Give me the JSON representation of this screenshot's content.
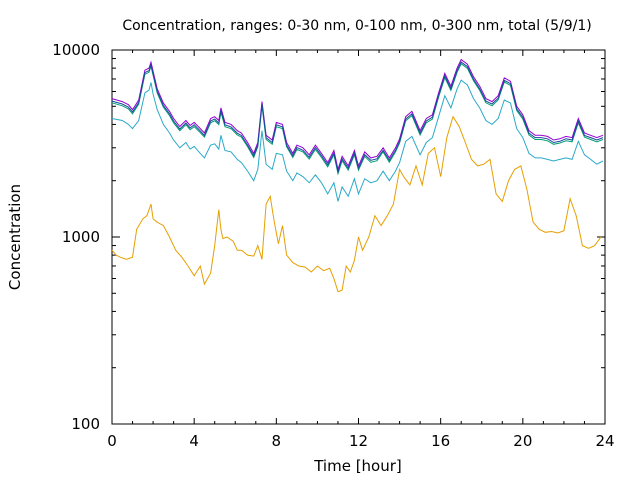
{
  "chart_data": {
    "type": "line",
    "title": "Concentration, ranges: 0-30 nm, 0-100 nm, 0-300 nm, total (5/9/1)",
    "xlabel": "Time [hour]",
    "ylabel": "Concentration",
    "xlim": [
      0,
      24
    ],
    "ylim": [
      100,
      10000
    ],
    "yscale": "log",
    "grid": false,
    "xticks": [
      0,
      4,
      8,
      12,
      16,
      20,
      24
    ],
    "yticks": [
      100,
      1000,
      10000
    ],
    "series": [
      {
        "color": "#9400d3",
        "x": [
          0,
          0.5,
          0.8,
          1,
          1.3,
          1.6,
          1.8,
          1.9,
          2,
          2.2,
          2.5,
          2.8,
          3,
          3.3,
          3.6,
          3.8,
          4,
          4.3,
          4.5,
          4.8,
          5,
          5.2,
          5.3,
          5.5,
          5.8,
          6.1,
          6.3,
          6.6,
          6.9,
          7.1,
          7.3,
          7.5,
          7.8,
          8,
          8.3,
          8.5,
          8.8,
          9,
          9.3,
          9.6,
          9.9,
          10.2,
          10.5,
          10.8,
          11,
          11.2,
          11.5,
          11.8,
          12,
          12.3,
          12.6,
          12.9,
          13.2,
          13.5,
          13.8,
          14,
          14.3,
          14.6,
          15,
          15.3,
          15.6,
          15.9,
          16.2,
          16.5,
          16.8,
          17,
          17.3,
          17.6,
          17.9,
          18.2,
          18.5,
          18.8,
          19.1,
          19.4,
          19.7,
          20,
          20.3,
          20.6,
          20.9,
          21.2,
          21.5,
          21.8,
          22.1,
          22.4,
          22.7,
          23,
          23.3,
          23.6,
          23.9
        ],
        "values": [
          5500,
          5300,
          5100,
          4800,
          5400,
          7800,
          8000,
          8600,
          7700,
          6200,
          5200,
          4700,
          4300,
          3900,
          4200,
          3950,
          4100,
          3800,
          3600,
          4300,
          4400,
          4200,
          4900,
          4100,
          4000,
          3700,
          3600,
          3200,
          2800,
          3200,
          5300,
          3500,
          3300,
          4100,
          4000,
          3200,
          2800,
          3100,
          3000,
          2750,
          3100,
          2800,
          2500,
          2900,
          2300,
          2700,
          2400,
          2900,
          2400,
          2850,
          2650,
          2700,
          3000,
          2650,
          3000,
          3350,
          4400,
          4700,
          3700,
          4300,
          4500,
          5900,
          7500,
          6400,
          8000,
          8900,
          8400,
          7200,
          6400,
          5500,
          5300,
          5700,
          7100,
          6800,
          5000,
          4500,
          3700,
          3500,
          3500,
          3450,
          3300,
          3350,
          3450,
          3400,
          4300,
          3600,
          3500,
          3400,
          3500
        ]
      },
      {
        "color": "#009e73",
        "x": [
          0,
          0.5,
          0.8,
          1,
          1.3,
          1.6,
          1.8,
          1.9,
          2,
          2.2,
          2.5,
          2.8,
          3,
          3.3,
          3.6,
          3.8,
          4,
          4.3,
          4.5,
          4.8,
          5,
          5.2,
          5.3,
          5.5,
          5.8,
          6.1,
          6.3,
          6.6,
          6.9,
          7.1,
          7.3,
          7.5,
          7.8,
          8,
          8.3,
          8.5,
          8.8,
          9,
          9.3,
          9.6,
          9.9,
          10.2,
          10.5,
          10.8,
          11,
          11.2,
          11.5,
          11.8,
          12,
          12.3,
          12.6,
          12.9,
          13.2,
          13.5,
          13.8,
          14,
          14.3,
          14.6,
          15,
          15.3,
          15.6,
          15.9,
          16.2,
          16.5,
          16.8,
          17,
          17.3,
          17.6,
          17.9,
          18.2,
          18.5,
          18.8,
          19.1,
          19.4,
          19.7,
          20,
          20.3,
          20.6,
          20.9,
          21.2,
          21.5,
          21.8,
          22.1,
          22.4,
          22.7,
          23,
          23.3,
          23.6,
          23.9
        ],
        "values": [
          5220,
          5030,
          4840,
          4560,
          5130,
          7410,
          7600,
          8170,
          7310,
          5890,
          4940,
          4460,
          4080,
          3700,
          3990,
          3750,
          3890,
          3610,
          3420,
          4080,
          4180,
          3990,
          4650,
          3890,
          3800,
          3510,
          3420,
          3040,
          2660,
          3040,
          5030,
          3320,
          3130,
          3890,
          3800,
          3040,
          2660,
          2940,
          2850,
          2610,
          2940,
          2660,
          2370,
          2750,
          2180,
          2560,
          2280,
          2750,
          2280,
          2700,
          2510,
          2560,
          2850,
          2510,
          2850,
          3180,
          4180,
          4460,
          3510,
          4080,
          4270,
          5600,
          7120,
          6080,
          7600,
          8450,
          7980,
          6840,
          6080,
          5220,
          5030,
          5410,
          6740,
          6460,
          4750,
          4270,
          3510,
          3320,
          3320,
          3270,
          3130,
          3180,
          3270,
          3230,
          4080,
          3420,
          3320,
          3230,
          3320
        ]
      },
      {
        "color": "#1a4a9a",
        "x": [
          0,
          0.5,
          0.8,
          1,
          1.3,
          1.6,
          1.8,
          1.9,
          2,
          2.2,
          2.5,
          2.8,
          3,
          3.3,
          3.6,
          3.8,
          4,
          4.3,
          4.5,
          4.8,
          5,
          5.2,
          5.3,
          5.5,
          5.8,
          6.1,
          6.3,
          6.6,
          6.9,
          7.1,
          7.3,
          7.5,
          7.8,
          8,
          8.3,
          8.5,
          8.8,
          9,
          9.3,
          9.6,
          9.9,
          10.2,
          10.5,
          10.8,
          11,
          11.2,
          11.5,
          11.8,
          12,
          12.3,
          12.6,
          12.9,
          13.2,
          13.5,
          13.8,
          14,
          14.3,
          14.6,
          15,
          15.3,
          15.6,
          15.9,
          16.2,
          16.5,
          16.8,
          17,
          17.3,
          17.6,
          17.9,
          18.2,
          18.5,
          18.8,
          19.1,
          19.4,
          19.7,
          20,
          20.3,
          20.6,
          20.9,
          21.2,
          21.5,
          21.8,
          22.1,
          22.4,
          22.7,
          23,
          23.3,
          23.6,
          23.9
        ],
        "values": [
          5330,
          5140,
          4950,
          4660,
          5240,
          7570,
          7760,
          8340,
          7470,
          6010,
          5040,
          4560,
          4170,
          3780,
          4070,
          3830,
          3980,
          3690,
          3490,
          4170,
          4270,
          4070,
          4750,
          3980,
          3880,
          3590,
          3490,
          3100,
          2720,
          3100,
          5140,
          3400,
          3200,
          3980,
          3880,
          3100,
          2720,
          3010,
          2910,
          2670,
          3010,
          2720,
          2430,
          2810,
          2230,
          2620,
          2330,
          2810,
          2330,
          2760,
          2570,
          2620,
          2910,
          2570,
          2910,
          3250,
          4270,
          4560,
          3590,
          4170,
          4370,
          5720,
          7280,
          6210,
          7760,
          8630,
          8150,
          6980,
          6210,
          5330,
          5140,
          5530,
          6890,
          6600,
          4850,
          4370,
          3590,
          3400,
          3400,
          3350,
          3200,
          3250,
          3350,
          3300,
          4170,
          3490,
          3400,
          3300,
          3400
        ]
      },
      {
        "color": "#2aa9c9",
        "x": [
          0,
          0.5,
          0.8,
          1,
          1.3,
          1.6,
          1.8,
          1.9,
          2,
          2.2,
          2.5,
          2.8,
          3,
          3.3,
          3.6,
          3.8,
          4,
          4.3,
          4.5,
          4.8,
          5,
          5.2,
          5.3,
          5.5,
          5.8,
          6.1,
          6.3,
          6.6,
          6.9,
          7.1,
          7.3,
          7.5,
          7.8,
          8,
          8.3,
          8.5,
          8.8,
          9,
          9.3,
          9.6,
          9.9,
          10.2,
          10.5,
          10.8,
          11,
          11.2,
          11.5,
          11.8,
          12,
          12.3,
          12.6,
          12.9,
          13.2,
          13.5,
          13.8,
          14,
          14.3,
          14.6,
          15,
          15.3,
          15.6,
          15.9,
          16.2,
          16.5,
          16.8,
          17,
          17.3,
          17.6,
          17.9,
          18.2,
          18.5,
          18.8,
          19.1,
          19.4,
          19.7,
          20,
          20.3,
          20.6,
          20.9,
          21.2,
          21.5,
          21.8,
          22.1,
          22.4,
          22.7,
          23,
          23.3,
          23.6,
          23.9
        ],
        "values": [
          4300,
          4200,
          4000,
          3800,
          4200,
          5900,
          6100,
          6700,
          5800,
          4800,
          4000,
          3600,
          3300,
          3000,
          3200,
          2950,
          3050,
          2800,
          2650,
          3100,
          3150,
          2950,
          3500,
          2900,
          2850,
          2600,
          2500,
          2250,
          2000,
          2300,
          3700,
          2450,
          2300,
          2800,
          2750,
          2250,
          2000,
          2200,
          2100,
          1950,
          2150,
          1950,
          1700,
          1950,
          1550,
          1850,
          1650,
          2050,
          1700,
          2050,
          1950,
          2000,
          2250,
          2000,
          2250,
          2500,
          3250,
          3450,
          2750,
          3200,
          3400,
          4400,
          5700,
          4900,
          6200,
          6900,
          6500,
          5500,
          4900,
          4200,
          4000,
          4300,
          5400,
          5200,
          3800,
          3400,
          2800,
          2650,
          2650,
          2600,
          2550,
          2600,
          2650,
          2600,
          3250,
          2750,
          2600,
          2450,
          2550
        ]
      },
      {
        "color": "#e69f00",
        "x": [
          0,
          0.2,
          0.4,
          0.7,
          1,
          1.2,
          1.5,
          1.7,
          1.9,
          2,
          2.2,
          2.5,
          2.8,
          3.1,
          3.4,
          3.7,
          4,
          4.3,
          4.5,
          4.8,
          5,
          5.2,
          5.3,
          5.4,
          5.6,
          5.9,
          6.1,
          6.3,
          6.6,
          6.9,
          7.1,
          7.3,
          7.5,
          7.7,
          7.9,
          8.1,
          8.3,
          8.5,
          8.8,
          9.1,
          9.4,
          9.7,
          10,
          10.3,
          10.6,
          10.8,
          11,
          11.2,
          11.4,
          11.6,
          11.8,
          12,
          12.2,
          12.5,
          12.8,
          13.1,
          13.4,
          13.7,
          14,
          14.2,
          14.5,
          14.8,
          15.1,
          15.4,
          15.7,
          16,
          16.3,
          16.6,
          16.9,
          17.2,
          17.5,
          17.8,
          18.1,
          18.4,
          18.7,
          19,
          19.3,
          19.6,
          19.9,
          20.2,
          20.5,
          20.8,
          21.1,
          21.4,
          21.7,
          22,
          22.3,
          22.6,
          22.9,
          23.2,
          23.5,
          23.8
        ],
        "values": [
          850,
          800,
          780,
          760,
          780,
          1100,
          1250,
          1300,
          1500,
          1250,
          1200,
          1150,
          1000,
          850,
          780,
          700,
          620,
          700,
          560,
          640,
          900,
          1400,
          1100,
          980,
          1000,
          950,
          850,
          850,
          800,
          790,
          900,
          760,
          1500,
          1650,
          1200,
          920,
          1150,
          800,
          730,
          700,
          690,
          650,
          700,
          660,
          680,
          600,
          510,
          520,
          700,
          650,
          750,
          1000,
          850,
          1000,
          1300,
          1150,
          1300,
          1500,
          2300,
          2100,
          1900,
          2400,
          1900,
          2800,
          3000,
          2100,
          3400,
          4400,
          3900,
          3200,
          2600,
          2400,
          2450,
          2600,
          1700,
          1550,
          2000,
          2300,
          2400,
          1800,
          1200,
          1100,
          1060,
          1070,
          1050,
          1080,
          1600,
          1300,
          900,
          870,
          900,
          1000
        ]
      }
    ]
  }
}
